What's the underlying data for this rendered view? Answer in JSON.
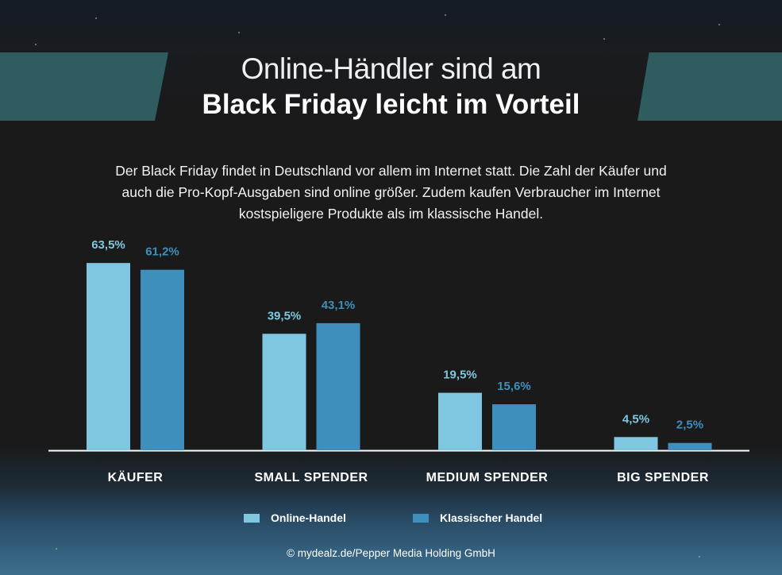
{
  "title": {
    "line1": "Online-Händler sind am",
    "line2": "Black Friday leicht im Vorteil"
  },
  "subtitle": "Der Black Friday findet in Deutschland vor allem im Internet statt. Die Zahl der Käufer und auch die Pro-Kopf-Ausgaben sind online größer. Zudem kaufen Verbraucher im Internet kostspieligere Produkte als im klassische Handel.",
  "colors": {
    "online": "#7fc7e0",
    "klassisch": "#3f8fbd",
    "banner": "#2f5c5e"
  },
  "chart_data": {
    "type": "bar",
    "title": "",
    "xlabel": "",
    "ylabel": "",
    "ylim": [
      0,
      70
    ],
    "grid": false,
    "legend_position": "bottom",
    "categories": [
      "KÄUFER",
      "SMALL SPENDER",
      "MEDIUM SPENDER",
      "BIG SPENDER"
    ],
    "series": [
      {
        "name": "Online-Handel",
        "values": [
          63.5,
          39.5,
          19.5,
          4.5
        ],
        "labels": [
          "63,5%",
          "39,5%",
          "19,5%",
          "4,5%"
        ]
      },
      {
        "name": "Klassischer Handel",
        "values": [
          61.2,
          43.1,
          15.6,
          2.5
        ],
        "labels": [
          "61,2%",
          "43,1%",
          "15,6%",
          "2,5%"
        ]
      }
    ]
  },
  "footer": "© mydealz.de/Pepper Media Holding GmbH"
}
